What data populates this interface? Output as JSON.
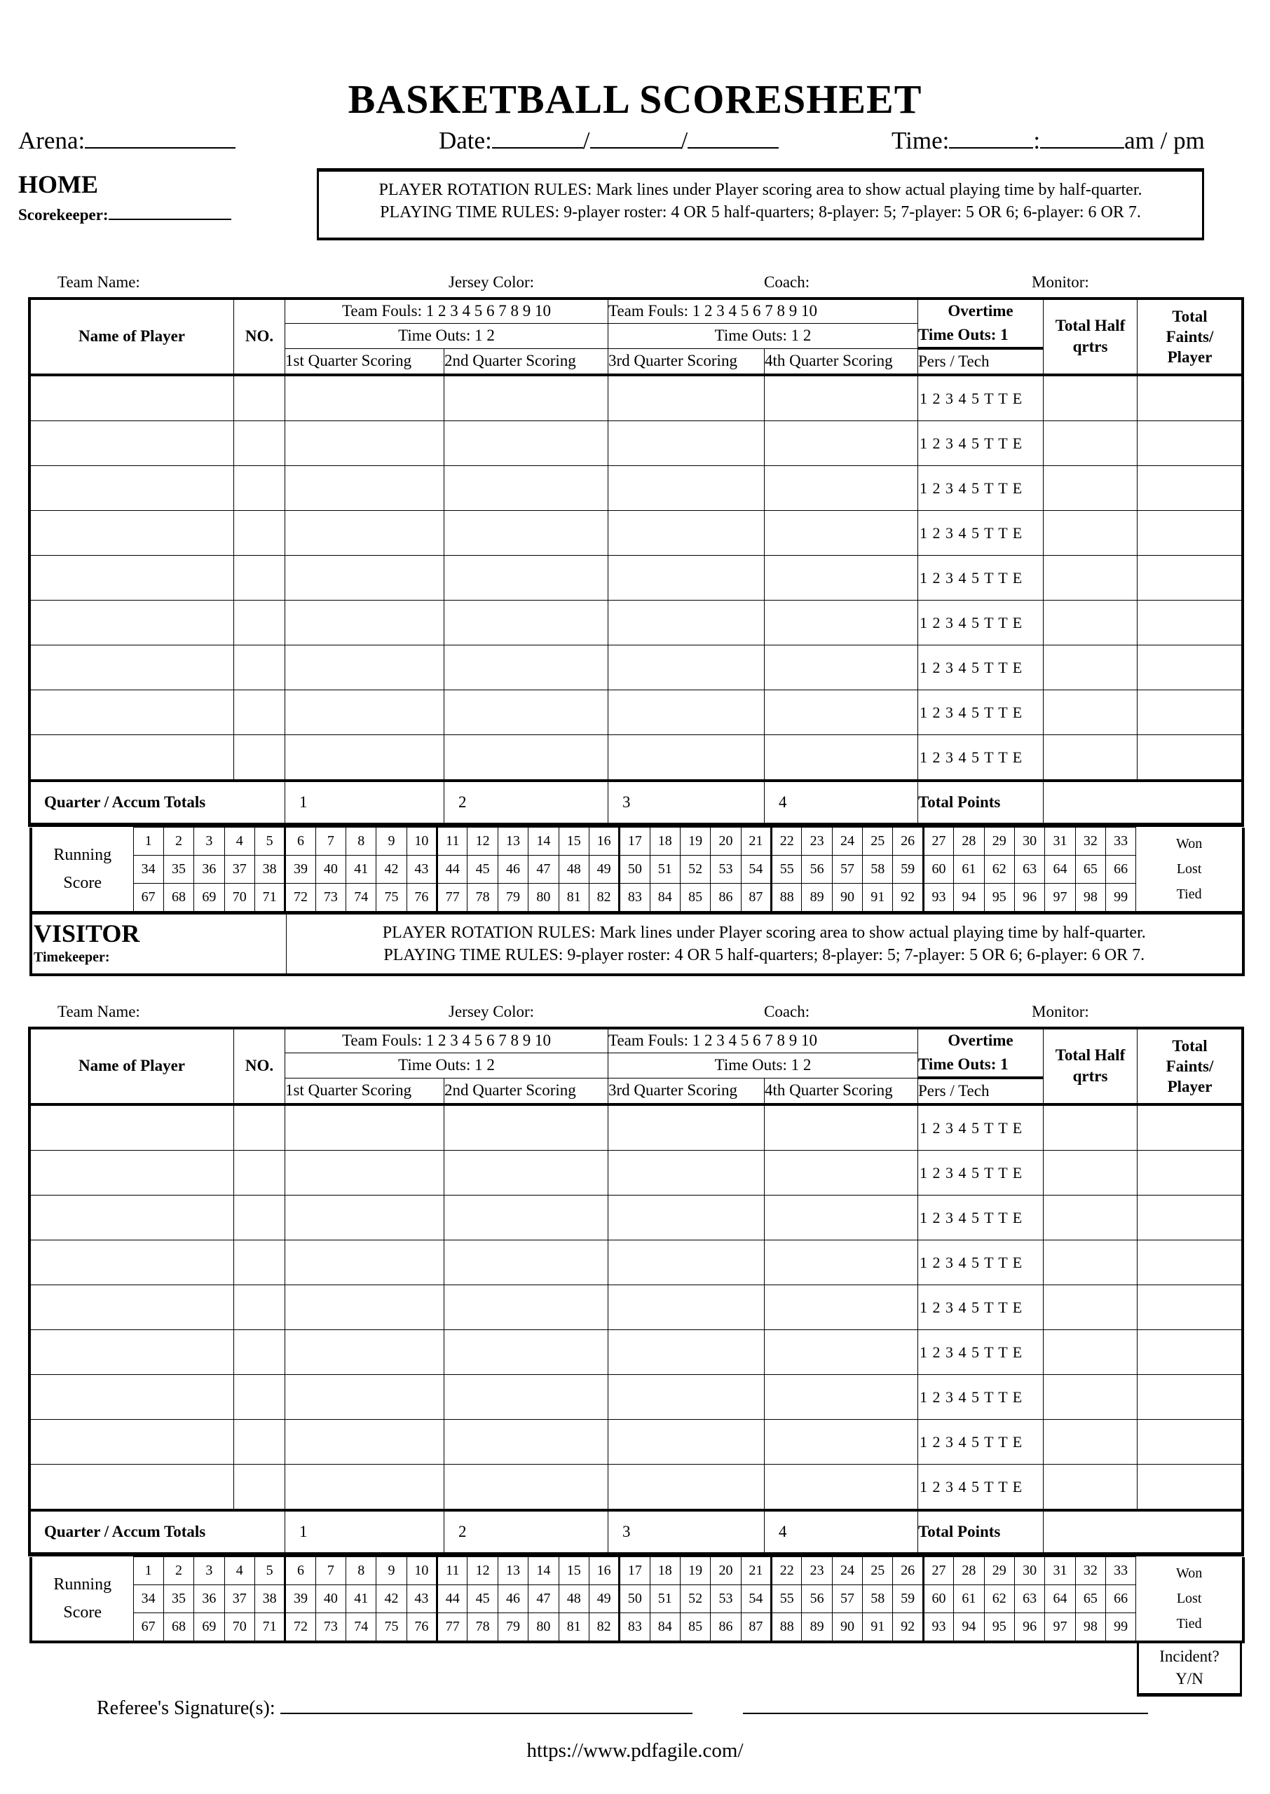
{
  "title": "BASKETBALL SCORESHEET",
  "header": {
    "arena_label": "Arena:",
    "date_label": "Date:",
    "date_sep": "/",
    "time_label": "Time:",
    "time_sep": ":",
    "ampm": "am / pm"
  },
  "rules": {
    "rotation": "PLAYER ROTATION RULES: Mark lines under Player scoring area to show actual playing time by half-quarter.",
    "playing": "PLAYING TIME RULES: 9-player roster:  4 OR 5 half-quarters;  8-player: 5;  7-player: 5 OR 6;  6-player: 6 OR 7."
  },
  "teams": [
    {
      "side": "HOME",
      "keeper_label": "Scorekeeper:"
    },
    {
      "side": "VISITOR",
      "keeper_label": "Timekeeper:"
    }
  ],
  "team_info_labels": [
    "Team Name:",
    "Jersey Color:",
    "Coach:",
    "Monitor:"
  ],
  "table": {
    "name_header": "Name of Player",
    "no_header": "NO.",
    "team_fouls": "Team Fouls: 1 2 3 4 5 6 7 8 9 10",
    "time_outs": "Time Outs: 1 2",
    "quarters": [
      "1st Quarter Scoring",
      "2nd Quarter Scoring",
      "3rd Quarter Scoring",
      "4th Quarter Scoring"
    ],
    "overtime": "Overtime",
    "ot_time_outs": "Time Outs: 1",
    "pers_tech": "Pers / Tech",
    "total_half": [
      "Total Half",
      "qrtrs"
    ],
    "total_faints": [
      "Total",
      "Faints/",
      "Player"
    ],
    "foul_marks": "1 2 3 4 5 T T E",
    "totals_label": "Quarter / Accum Totals",
    "quarter_numbers": [
      "1",
      "2",
      "3",
      "4"
    ],
    "total_points": "Total Points",
    "running_label": [
      "Running",
      "Score"
    ],
    "results": [
      "Won",
      "Lost",
      "Tied"
    ]
  },
  "running_score": [
    [
      "1",
      "2",
      "3",
      "4",
      "5",
      "6",
      "7",
      "8",
      "9",
      "10",
      "11",
      "12",
      "13",
      "14",
      "15",
      "16",
      "17",
      "18",
      "19",
      "20",
      "21",
      "22",
      "23",
      "24",
      "25",
      "26",
      "27",
      "28",
      "29",
      "30",
      "31",
      "32",
      "33"
    ],
    [
      "34",
      "35",
      "36",
      "37",
      "38",
      "39",
      "40",
      "41",
      "42",
      "43",
      "44",
      "45",
      "46",
      "47",
      "48",
      "49",
      "50",
      "51",
      "52",
      "53",
      "54",
      "55",
      "56",
      "57",
      "58",
      "59",
      "60",
      "61",
      "62",
      "63",
      "64",
      "65",
      "66"
    ],
    [
      "67",
      "68",
      "69",
      "70",
      "71",
      "72",
      "73",
      "74",
      "75",
      "76",
      "77",
      "78",
      "79",
      "80",
      "81",
      "82",
      "83",
      "84",
      "85",
      "86",
      "87",
      "88",
      "89",
      "90",
      "91",
      "92",
      "93",
      "94",
      "95",
      "96",
      "97",
      "98",
      "99"
    ]
  ],
  "incident": [
    "Incident?",
    "Y/N"
  ],
  "referee_label": "Referee's Signature(s):",
  "url": "https://www.pdfagile.com/"
}
